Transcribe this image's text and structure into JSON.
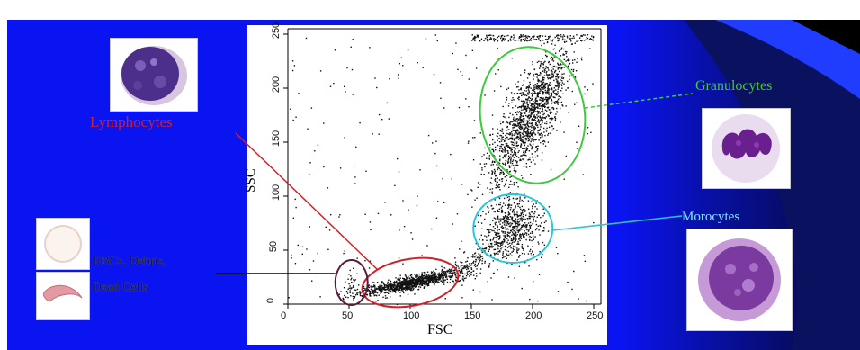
{
  "labels": {
    "lymphocytes": "Lymphocytes",
    "granulocytes": "Granulocytes",
    "monocytes": "Morocytes",
    "rbc_line1": "RBCs, Debris,",
    "rbc_line2": "Dead Cells"
  },
  "axes": {
    "x_title": "FSC",
    "y_title": "SSC",
    "x_ticks": [
      "0",
      "50",
      "100",
      "150",
      "200",
      "250"
    ],
    "y_ticks": [
      "0",
      "50",
      "100",
      "150",
      "200",
      "250"
    ]
  },
  "colors": {
    "background_blue": "#0a14f0",
    "lymphocyte_gate": "#d41f2a",
    "granulocyte_gate": "#3ec93e",
    "monocyte_gate": "#27c6d8",
    "debris_gate": "#5a1a3a"
  },
  "chart_data": {
    "type": "scatter",
    "xlabel": "FSC",
    "ylabel": "SSC",
    "xlim": [
      0,
      250
    ],
    "ylim": [
      0,
      250
    ],
    "populations": [
      {
        "name": "Lymphocytes",
        "center": [
          100,
          20
        ],
        "gate": "red ellipse"
      },
      {
        "name": "Granulocytes",
        "center": [
          200,
          175
        ],
        "gate": "green ellipse"
      },
      {
        "name": "Morocytes",
        "center": [
          185,
          70
        ],
        "gate": "cyan ellipse"
      },
      {
        "name": "RBCs, Debris, Dead Cells",
        "center": [
          52,
          20
        ],
        "gate": "dark ellipse"
      }
    ]
  }
}
